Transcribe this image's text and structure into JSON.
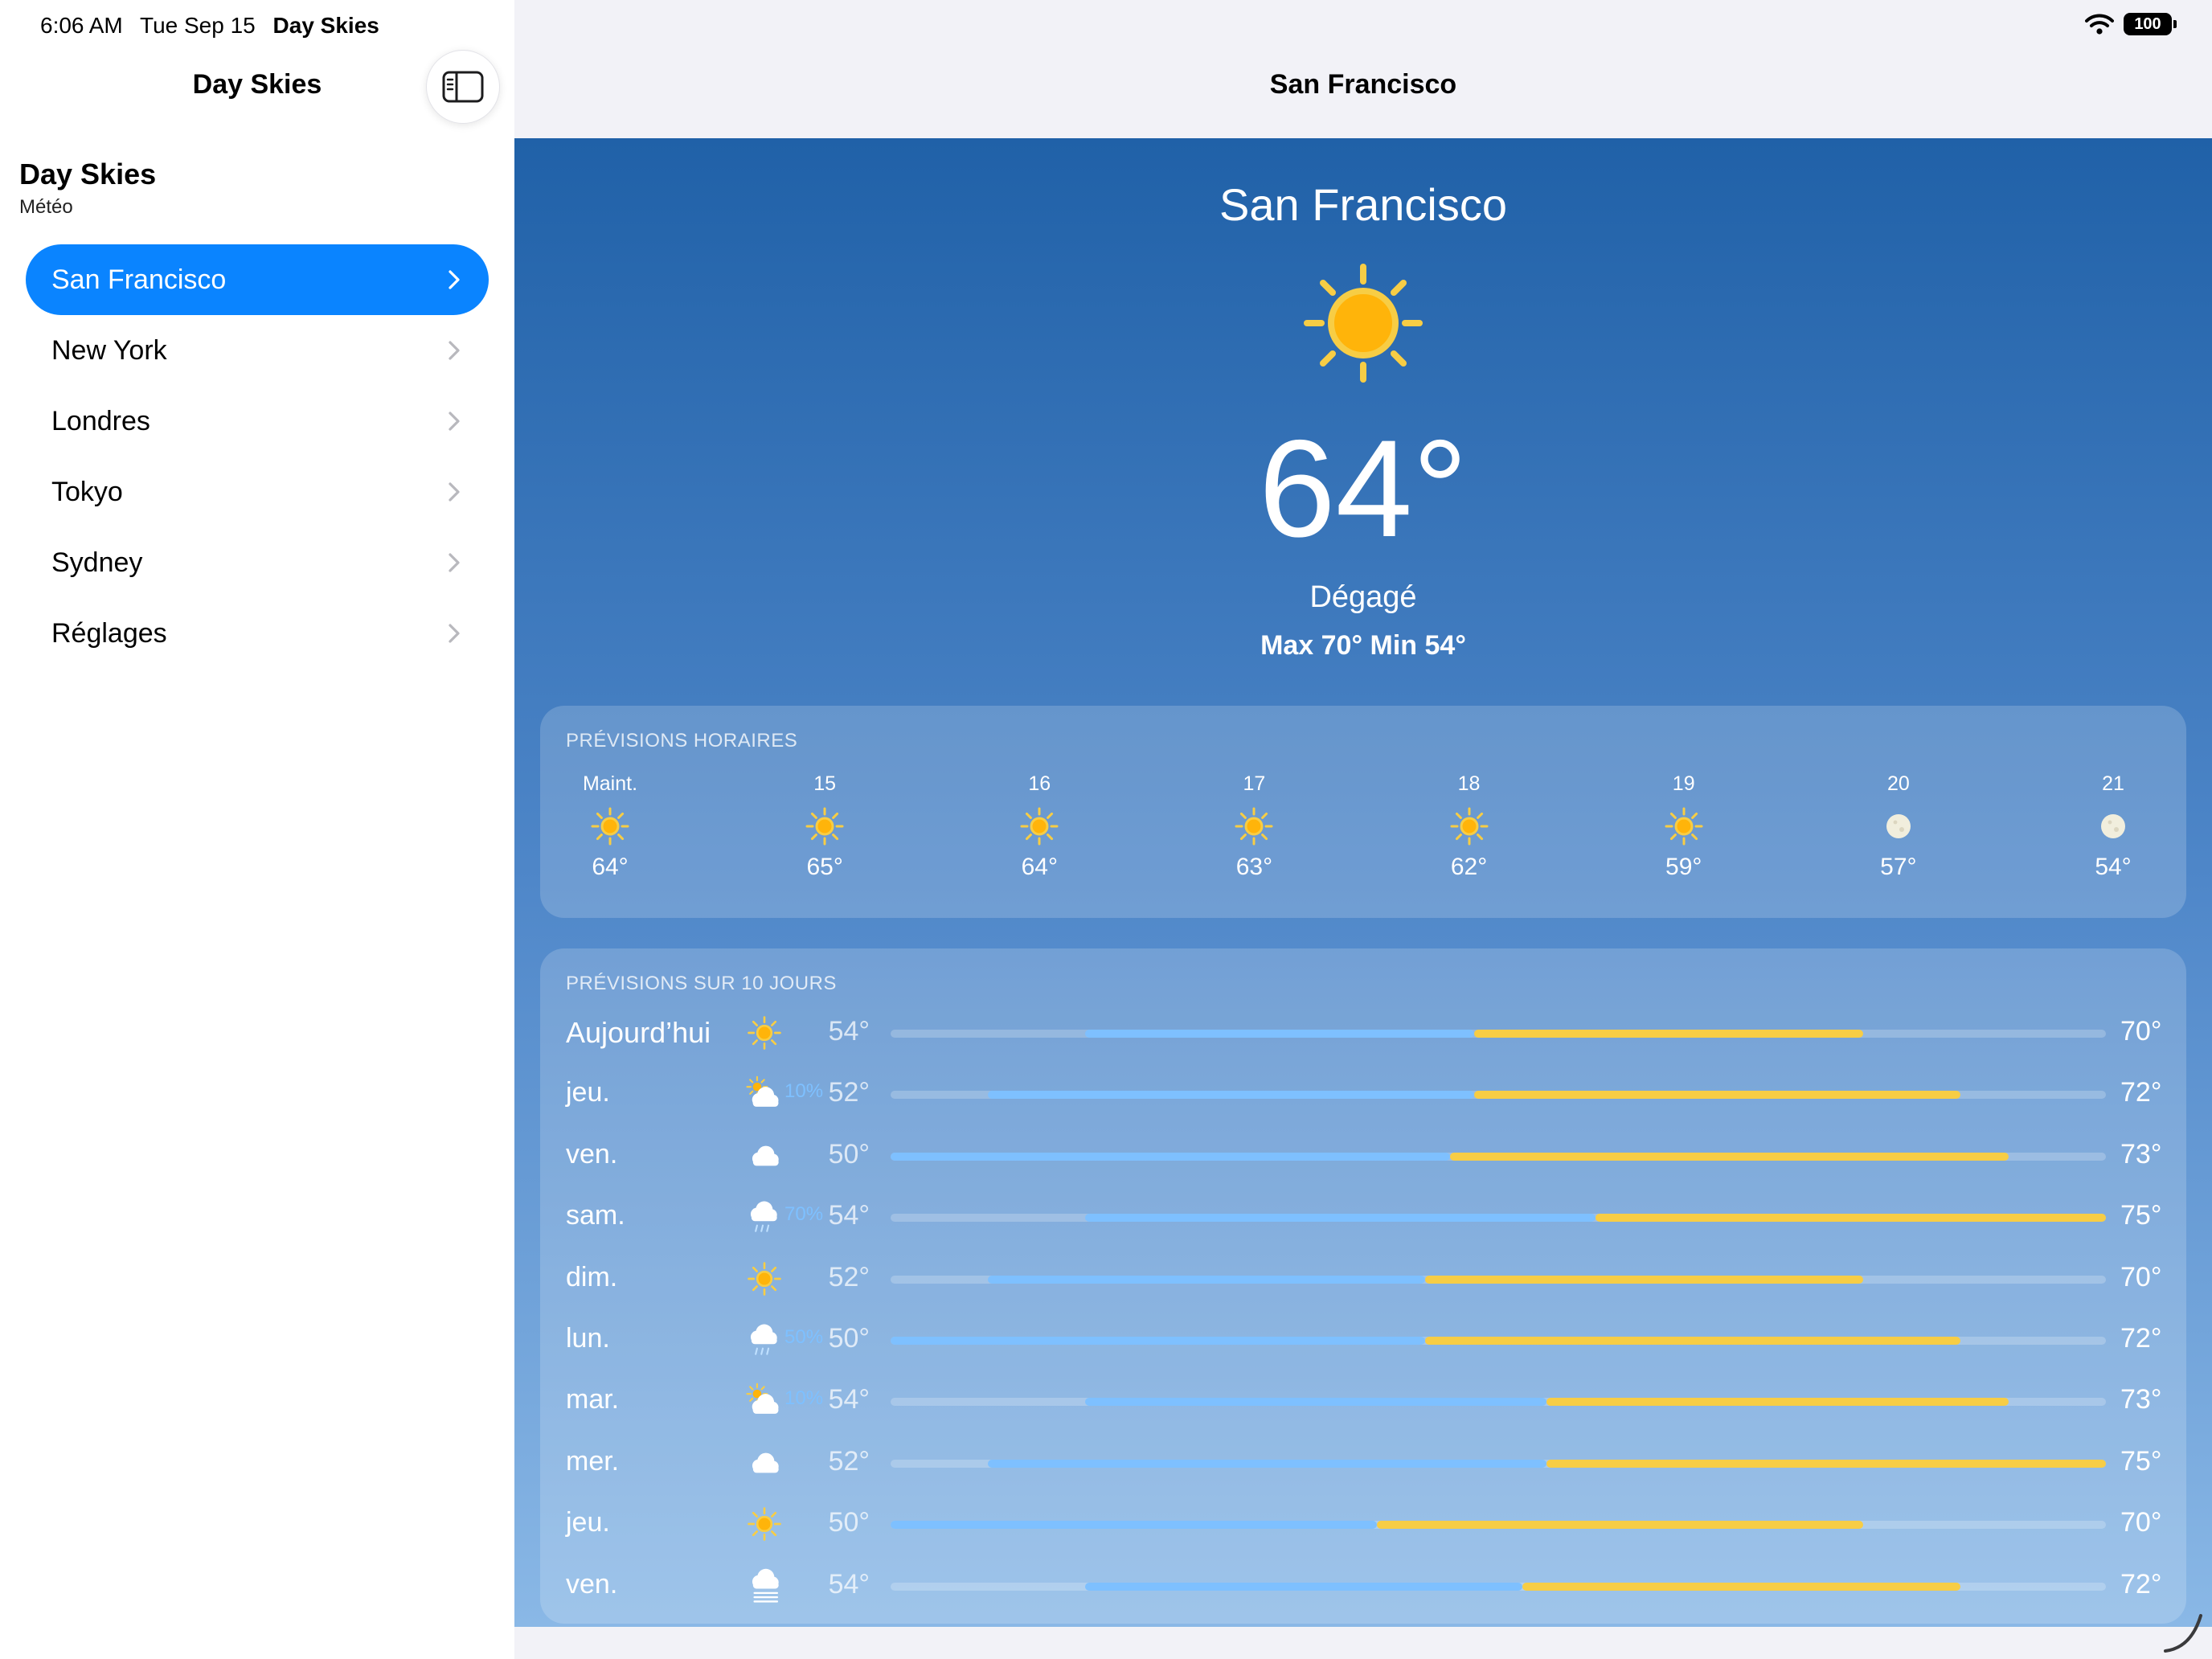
{
  "status": {
    "time": "6:06 AM",
    "date": "Tue Sep 15",
    "app": "Day Skies",
    "battery": "100"
  },
  "sidebar": {
    "title": "Day Skies",
    "section_title": "Day Skies",
    "section_subtitle": "Météo",
    "items": [
      {
        "label": "San Francisco",
        "selected": true
      },
      {
        "label": "New York"
      },
      {
        "label": "Londres"
      },
      {
        "label": "Tokyo"
      },
      {
        "label": "Sydney"
      },
      {
        "label": "Réglages"
      }
    ]
  },
  "main": {
    "nav_title": "San Francisco",
    "city": "San Francisco",
    "current_temp": "64°",
    "condition": "Dégagé",
    "hi_lo": "Max 70° Min 54°",
    "current_icon": "sun-icon"
  },
  "hourly": {
    "title": "PRÉVISIONS HORAIRES",
    "hours": [
      {
        "label": "Maint.",
        "temp": "64°",
        "icon": "sun"
      },
      {
        "label": "15",
        "temp": "65°",
        "icon": "sun"
      },
      {
        "label": "16",
        "temp": "64°",
        "icon": "sun"
      },
      {
        "label": "17",
        "temp": "63°",
        "icon": "sun"
      },
      {
        "label": "18",
        "temp": "62°",
        "icon": "sun"
      },
      {
        "label": "19",
        "temp": "59°",
        "icon": "sun"
      },
      {
        "label": "20",
        "temp": "57°",
        "icon": "moon"
      },
      {
        "label": "21",
        "temp": "54°",
        "icon": "moon"
      }
    ]
  },
  "daily": {
    "title": "PRÉVISIONS SUR 10 JOURS",
    "colors": {
      "cool": "#7ec0ff",
      "warm": "#f7cd45"
    },
    "days": [
      {
        "name": "Aujourd’hui",
        "icon": "sun",
        "pop": "",
        "lo": "54°",
        "hi": "70°",
        "lo_val": 54,
        "hi_val": 70
      },
      {
        "name": "jeu.",
        "icon": "partly-cloudy",
        "pop": "10%",
        "lo": "52°",
        "hi": "72°",
        "lo_val": 52,
        "hi_val": 72
      },
      {
        "name": "ven.",
        "icon": "cloud",
        "pop": "",
        "lo": "50°",
        "hi": "73°",
        "lo_val": 50,
        "hi_val": 73
      },
      {
        "name": "sam.",
        "icon": "rain",
        "pop": "70%",
        "lo": "54°",
        "hi": "75°",
        "lo_val": 54,
        "hi_val": 75
      },
      {
        "name": "dim.",
        "icon": "sun",
        "pop": "",
        "lo": "52°",
        "hi": "70°",
        "lo_val": 52,
        "hi_val": 70
      },
      {
        "name": "lun.",
        "icon": "rain",
        "pop": "50%",
        "lo": "50°",
        "hi": "72°",
        "lo_val": 50,
        "hi_val": 72
      },
      {
        "name": "mar.",
        "icon": "partly-cloudy",
        "pop": "10%",
        "lo": "54°",
        "hi": "73°",
        "lo_val": 54,
        "hi_val": 73
      },
      {
        "name": "mer.",
        "icon": "cloud",
        "pop": "",
        "lo": "52°",
        "hi": "75°",
        "lo_val": 52,
        "hi_val": 75
      },
      {
        "name": "jeu.",
        "icon": "sun",
        "pop": "",
        "lo": "50°",
        "hi": "70°",
        "lo_val": 50,
        "hi_val": 70
      },
      {
        "name": "ven.",
        "icon": "fog",
        "pop": "",
        "lo": "54°",
        "hi": "72°",
        "lo_val": 54,
        "hi_val": 72
      }
    ]
  }
}
